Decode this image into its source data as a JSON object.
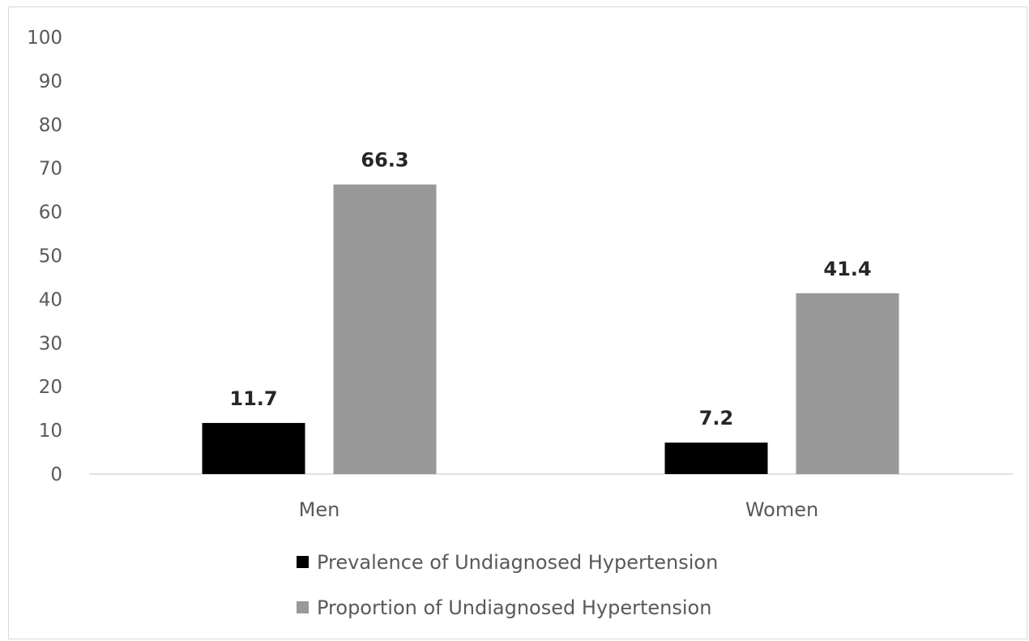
{
  "chart_data": {
    "type": "bar",
    "title": "",
    "xlabel": "",
    "ylabel": "",
    "categories": [
      "Men",
      "Women"
    ],
    "ylim": [
      0,
      100
    ],
    "yticks": [
      0,
      10,
      20,
      30,
      40,
      50,
      60,
      70,
      80,
      90,
      100
    ],
    "grid": false,
    "legend_position": "bottom",
    "series": [
      {
        "name": "Prevalence of Undiagnosed Hypertension",
        "values": [
          11.7,
          7.2
        ],
        "labels": [
          "11.7",
          "7.2"
        ],
        "color": "#000000"
      },
      {
        "name": "Proportion of Undiagnosed Hypertension",
        "values": [
          66.3,
          41.4
        ],
        "labels": [
          "66.3",
          "41.4"
        ],
        "color": "#999999"
      }
    ]
  }
}
